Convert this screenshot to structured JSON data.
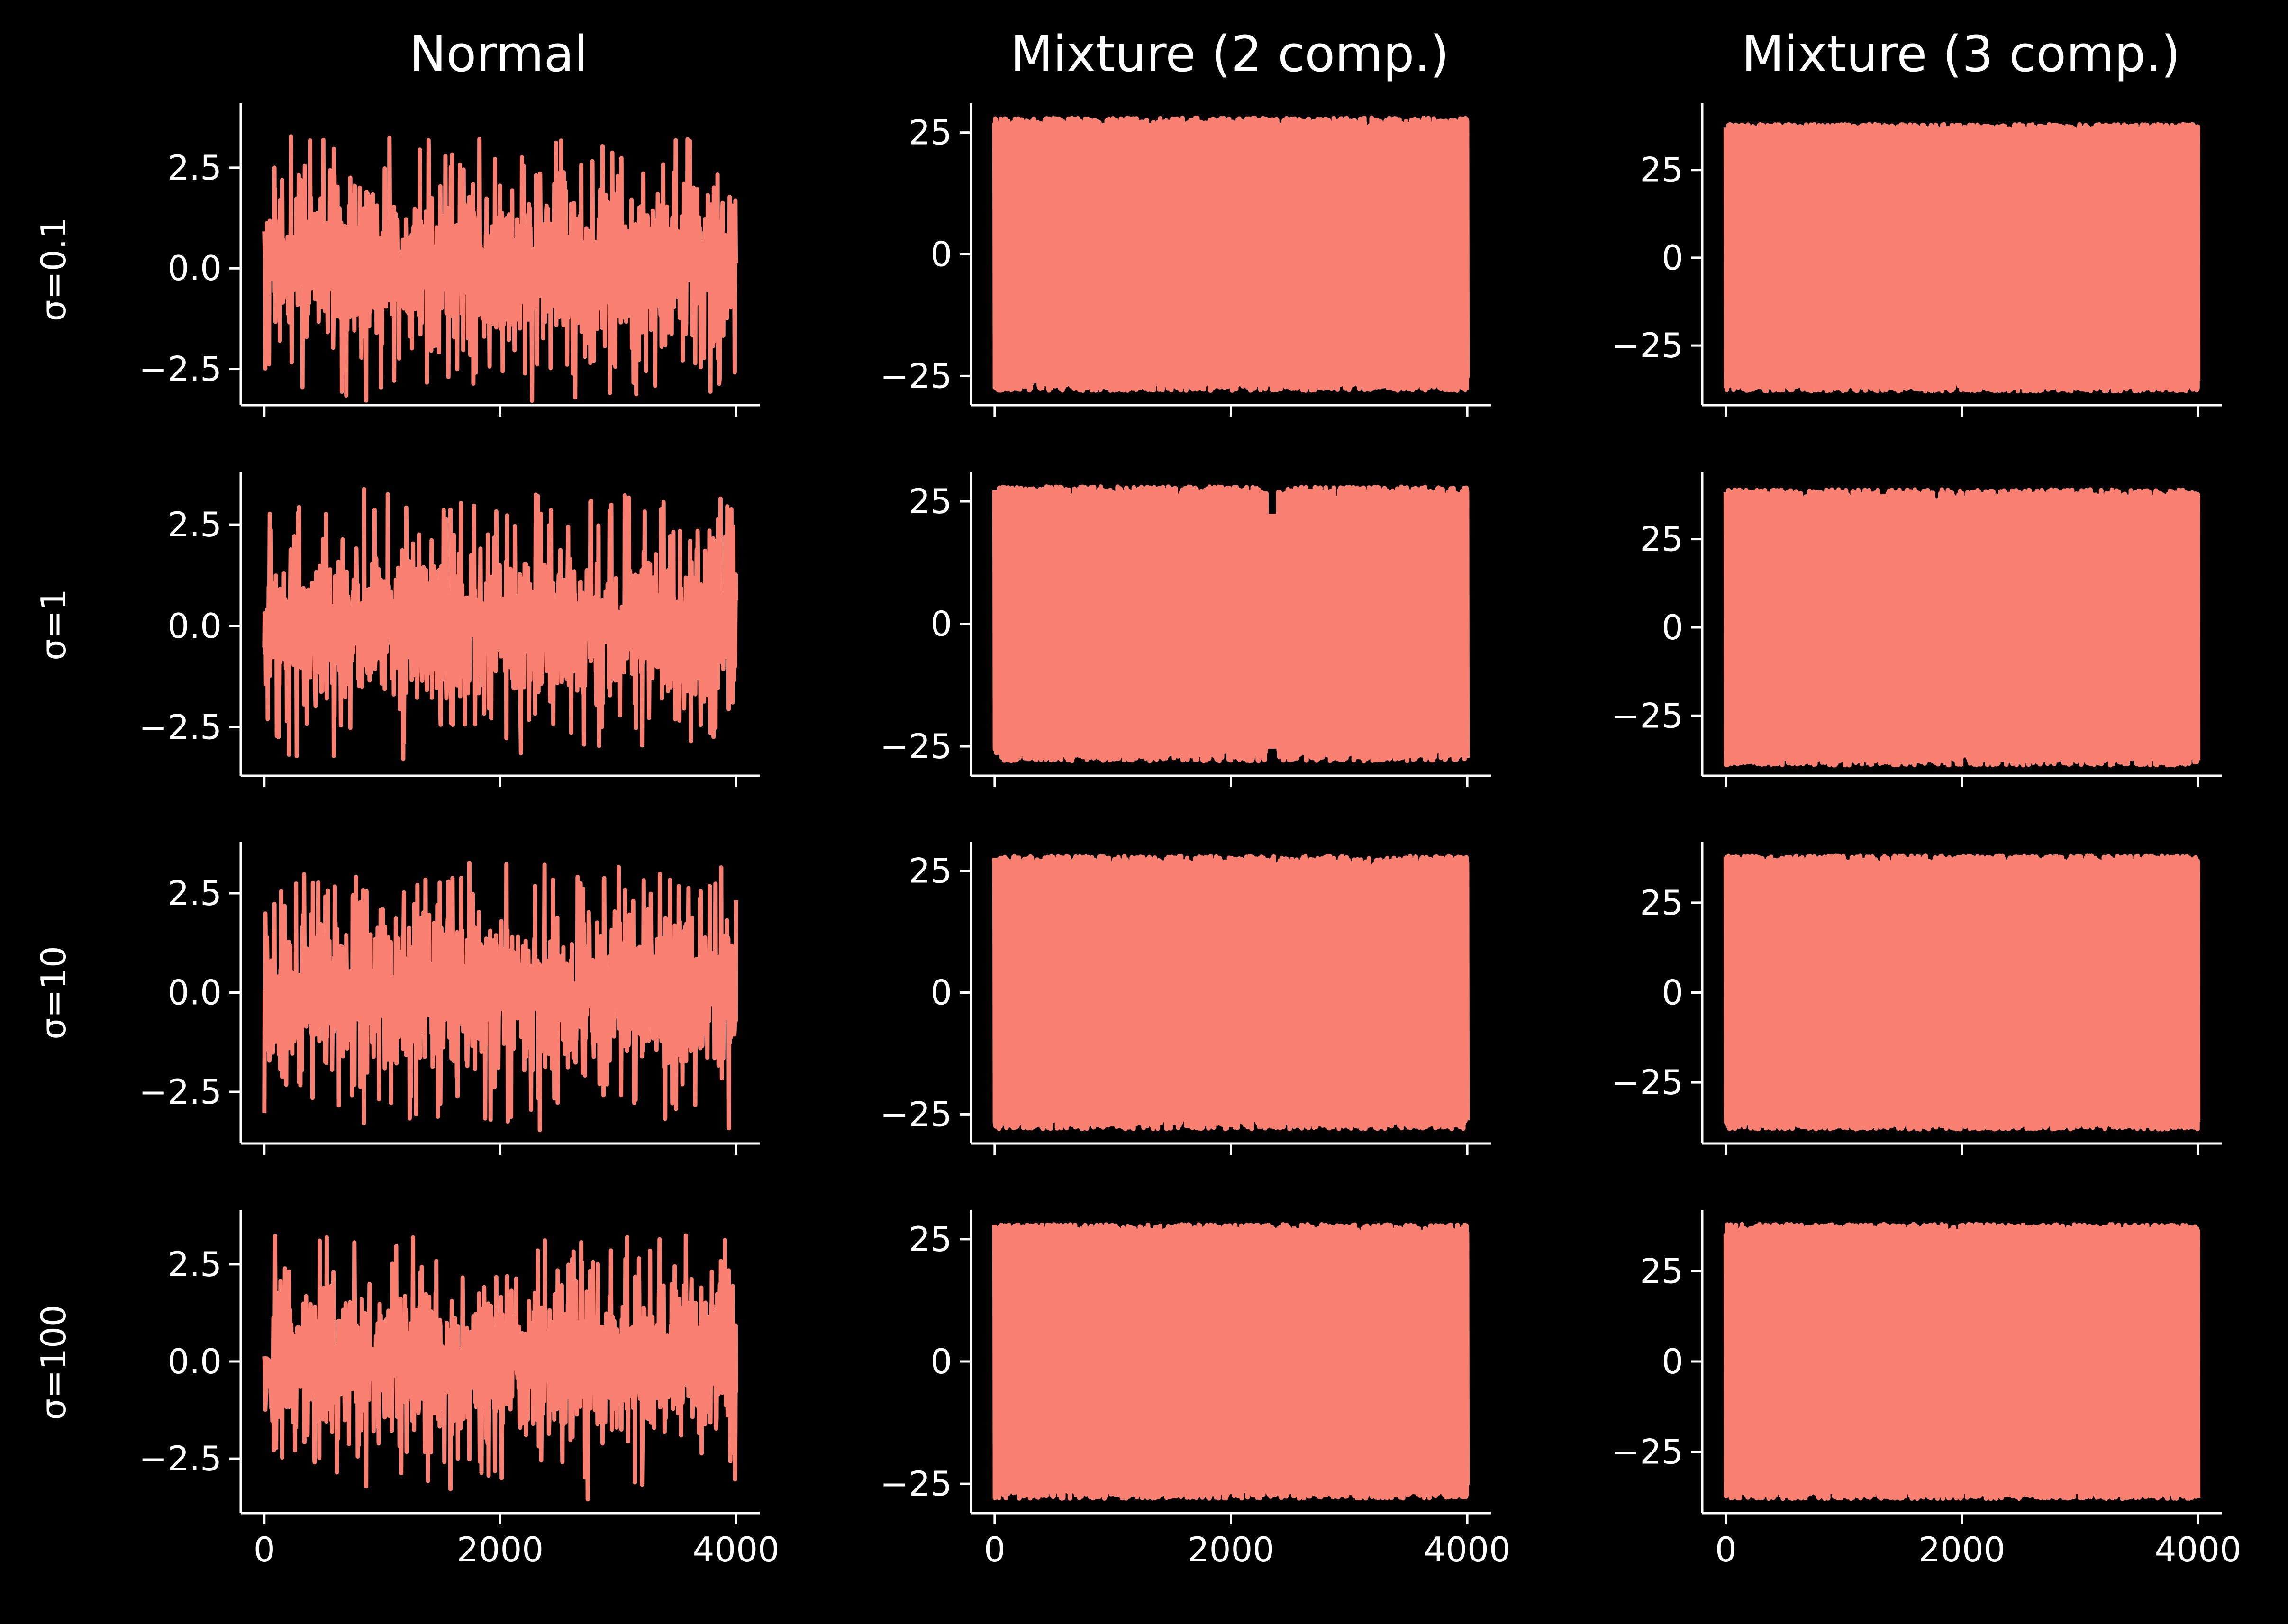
{
  "colors": {
    "background": "#000000",
    "series": "#FA8072",
    "axes": "#ffffff",
    "text": "#ffffff"
  },
  "column_titles": [
    "Normal",
    "Mixture (2 comp.)",
    "Mixture (3 comp.)"
  ],
  "row_labels": [
    "σ=0.1",
    "σ=1",
    "σ=10",
    "σ=100"
  ],
  "chart_data": {
    "type": "line",
    "layout": "grid 4 rows x 3 columns",
    "x_ticks": [
      0,
      2000,
      4000
    ],
    "xlim": [
      -200,
      4200
    ],
    "columns": [
      {
        "title": "Normal",
        "y_ticks": [
          -2.5,
          0.0,
          2.5
        ],
        "y_tick_labels": [
          "−2.5",
          "0.0",
          "2.5"
        ]
      },
      {
        "title": "Mixture (2 comp.)",
        "y_ticks": [
          -25,
          0,
          25
        ],
        "y_tick_labels": [
          "−25",
          "0",
          "25"
        ]
      },
      {
        "title": "Mixture (3 comp.)",
        "y_ticks": [
          -25,
          0,
          25
        ],
        "y_tick_labels": [
          "−25",
          "0",
          "25"
        ]
      }
    ],
    "panels": [
      {
        "row": 0,
        "col": 0,
        "ylim": [
          -3.4,
          4.1
        ],
        "n": 4000,
        "band": [
          -2.0,
          2.0
        ],
        "spikes": [
          -3.3,
          4.0
        ]
      },
      {
        "row": 0,
        "col": 1,
        "ylim": [
          -31,
          31
        ],
        "n": 4000,
        "band": [
          -26,
          26
        ],
        "extreme": [
          -28,
          28
        ]
      },
      {
        "row": 0,
        "col": 2,
        "ylim": [
          -42,
          44
        ],
        "n": 4000,
        "band": [
          -36,
          36
        ],
        "extreme": [
          -38,
          38
        ]
      },
      {
        "row": 1,
        "col": 0,
        "ylim": [
          -3.7,
          3.8
        ],
        "n": 4000,
        "band": [
          -2.0,
          2.0
        ],
        "spikes": [
          -3.3,
          3.4
        ]
      },
      {
        "row": 1,
        "col": 1,
        "ylim": [
          -31,
          31
        ],
        "n": 4000,
        "band": [
          -26,
          26
        ],
        "extreme": [
          -29,
          28
        ],
        "gap_at": [
          2300,
          2400
        ]
      },
      {
        "row": 1,
        "col": 2,
        "ylim": [
          -42,
          44
        ],
        "n": 4000,
        "band": [
          -36,
          36
        ],
        "extreme": [
          -38,
          39
        ]
      },
      {
        "row": 2,
        "col": 0,
        "ylim": [
          -3.8,
          3.8
        ],
        "n": 4000,
        "band": [
          -2.0,
          2.0
        ],
        "spikes": [
          -3.6,
          3.3
        ]
      },
      {
        "row": 2,
        "col": 1,
        "ylim": [
          -31,
          31
        ],
        "n": 4000,
        "band": [
          -26,
          26
        ],
        "extreme": [
          -28,
          28
        ]
      },
      {
        "row": 2,
        "col": 2,
        "ylim": [
          -42,
          42
        ],
        "n": 4000,
        "band": [
          -36,
          36
        ],
        "extreme": [
          -38,
          38
        ]
      },
      {
        "row": 3,
        "col": 0,
        "ylim": [
          -3.9,
          3.9
        ],
        "n": 4000,
        "band": [
          -2.0,
          2.0
        ],
        "spikes": [
          -3.6,
          3.4
        ]
      },
      {
        "row": 3,
        "col": 1,
        "ylim": [
          -31,
          31
        ],
        "n": 4000,
        "band": [
          -26,
          26
        ],
        "extreme": [
          -28,
          28
        ]
      },
      {
        "row": 3,
        "col": 2,
        "ylim": [
          -42,
          42
        ],
        "n": 4000,
        "band": [
          -36,
          36
        ],
        "extreme": [
          -38,
          38
        ]
      }
    ]
  }
}
